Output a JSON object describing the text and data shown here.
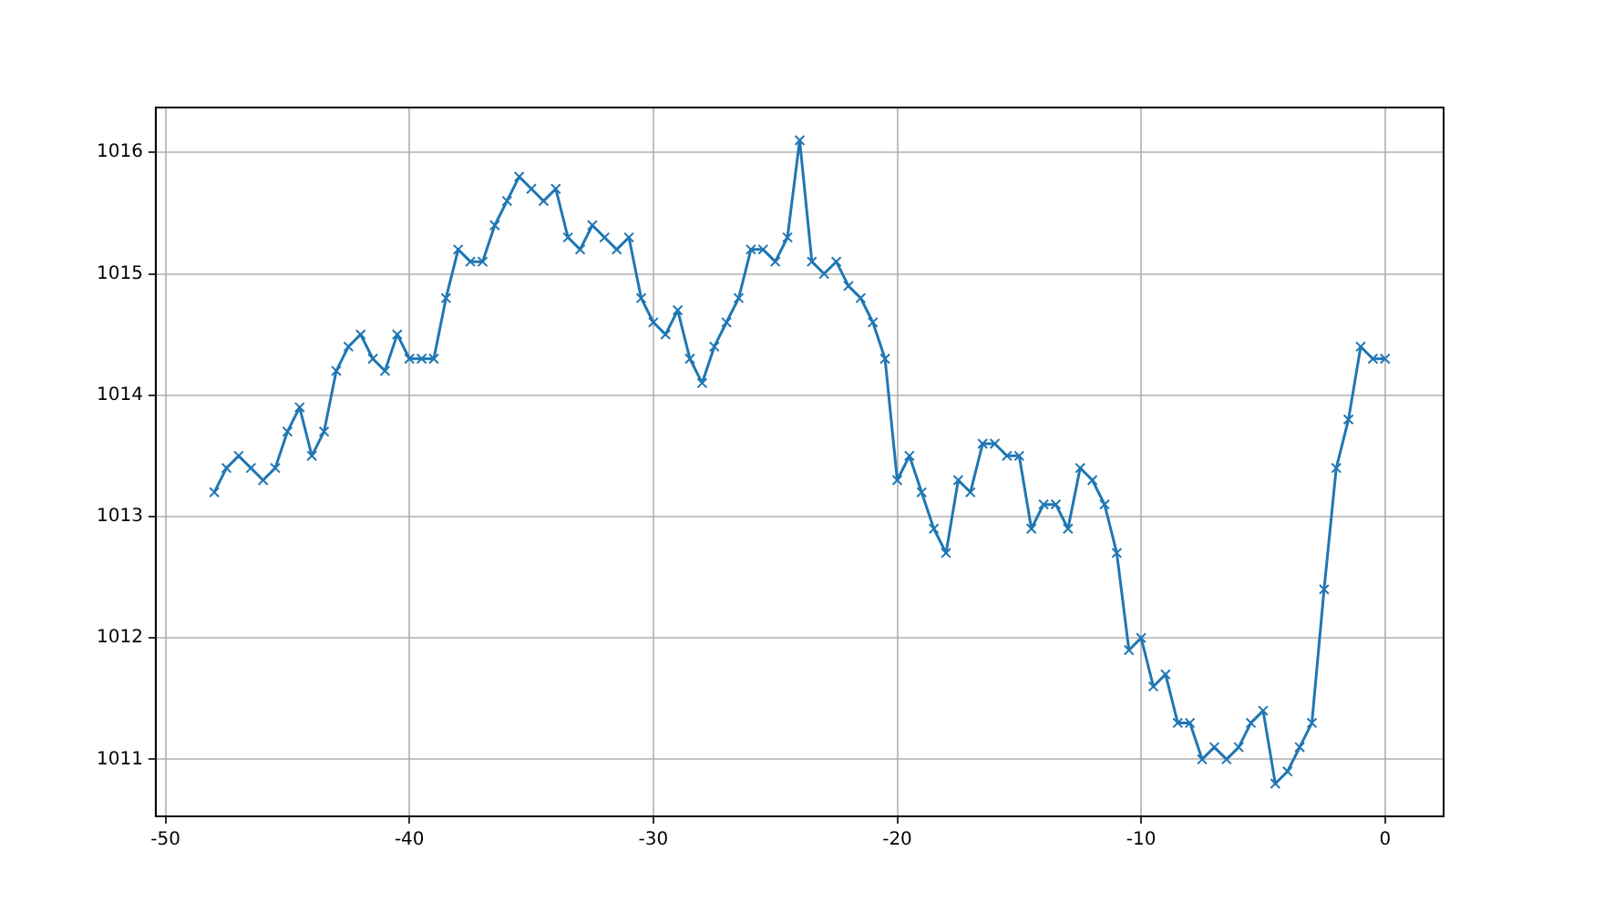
{
  "chart_data": {
    "type": "line",
    "marker": "cross",
    "grid": true,
    "color": "#1f77b4",
    "x": [
      -48,
      -47.5,
      -47,
      -46.5,
      -46,
      -45.5,
      -45,
      -44.5,
      -44,
      -43.5,
      -43,
      -42.5,
      -42,
      -41.5,
      -41,
      -40.5,
      -40,
      -39.5,
      -39,
      -38.5,
      -38,
      -37.5,
      -37,
      -36.5,
      -36,
      -35.5,
      -35,
      -34.5,
      -34,
      -33.5,
      -33,
      -32.5,
      -32,
      -31.5,
      -31,
      -30.5,
      -30,
      -29.5,
      -29,
      -28.5,
      -28,
      -27.5,
      -27,
      -26.5,
      -26,
      -25.5,
      -25,
      -24.5,
      -24,
      -23.5,
      -23,
      -22.5,
      -22,
      -21.5,
      -21,
      -20.5,
      -20,
      -19.5,
      -19,
      -18.5,
      -18,
      -17.5,
      -17,
      -16.5,
      -16,
      -15.5,
      -15,
      -14.5,
      -14,
      -13.5,
      -13,
      -12.5,
      -12,
      -11.5,
      -11,
      -10.5,
      -10,
      -9.5,
      -9,
      -8.5,
      -8,
      -7.5,
      -7,
      -6.5,
      -6,
      -5.5,
      -5,
      -4.5,
      -4,
      -3.5,
      -3,
      -2.5,
      -2,
      -1.5,
      -1,
      -0.5,
      0
    ],
    "values": [
      1013.2,
      1013.4,
      1013.5,
      1013.4,
      1013.3,
      1013.4,
      1013.7,
      1013.9,
      1013.5,
      1013.7,
      1014.2,
      1014.4,
      1014.5,
      1014.3,
      1014.2,
      1014.5,
      1014.3,
      1014.3,
      1014.3,
      1014.8,
      1015.2,
      1015.1,
      1015.1,
      1015.4,
      1015.6,
      1015.8,
      1015.7,
      1015.6,
      1015.7,
      1015.3,
      1015.2,
      1015.4,
      1015.3,
      1015.2,
      1015.3,
      1014.8,
      1014.6,
      1014.5,
      1014.7,
      1014.3,
      1014.1,
      1014.4,
      1014.6,
      1014.8,
      1015.2,
      1015.2,
      1015.1,
      1015.3,
      1016.1,
      1015.1,
      1015.0,
      1015.1,
      1014.9,
      1014.8,
      1014.6,
      1014.3,
      1013.3,
      1013.5,
      1013.2,
      1012.9,
      1012.7,
      1013.3,
      1013.2,
      1013.6,
      1013.6,
      1013.5,
      1013.5,
      1012.9,
      1013.1,
      1013.1,
      1012.9,
      1013.4,
      1013.3,
      1013.1,
      1012.7,
      1011.9,
      1012.0,
      1011.6,
      1011.7,
      1011.3,
      1011.3,
      1011.0,
      1011.1,
      1011.0,
      1011.1,
      1011.3,
      1011.4,
      1010.8,
      1010.9,
      1011.1,
      1011.3,
      1012.4,
      1013.4,
      1013.8,
      1014.4,
      1014.3,
      1014.3
    ],
    "xlim": [
      -50.4,
      2.4
    ],
    "xticks": [
      -50,
      -40,
      -30,
      -20,
      -10,
      0
    ],
    "ylim": [
      1010.53,
      1016.37
    ],
    "yticks": [
      1011,
      1012,
      1013,
      1014,
      1015,
      1016
    ]
  }
}
